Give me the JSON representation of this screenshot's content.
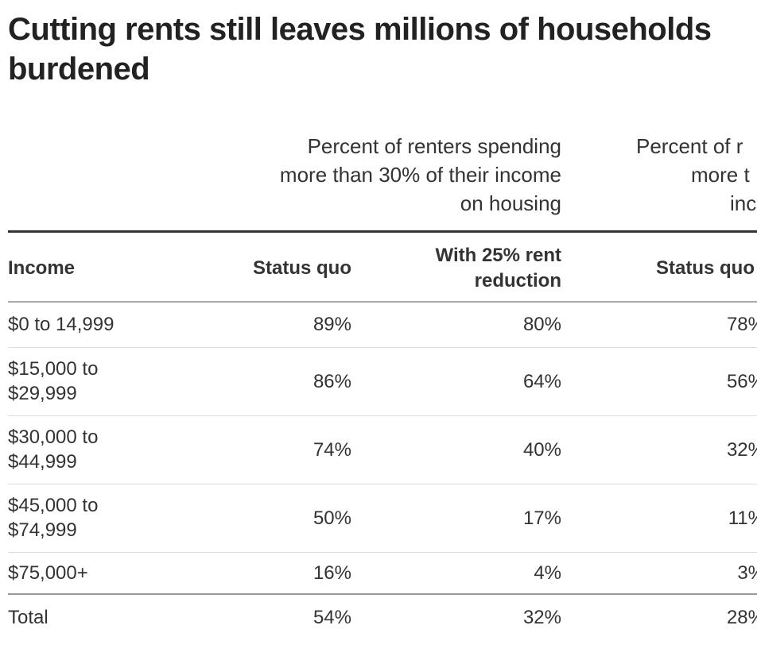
{
  "header": {
    "title": "Cutting rents still leaves millions of households burdened"
  },
  "table": {
    "column_groups": [
      {
        "lines": [
          "Percent of renters spending",
          "more than 30% of their income",
          "on housing"
        ]
      },
      {
        "lines": [
          "Percent of r",
          "more t",
          "inc"
        ]
      }
    ],
    "columns": [
      "Income",
      "Status quo",
      "With 25% rent reduction",
      "Status quo"
    ],
    "rows": [
      [
        "$0 to 14,999",
        "89%",
        "80%",
        "78%"
      ],
      [
        "$15,000 to $29,999",
        "86%",
        "64%",
        "56%"
      ],
      [
        "$30,000 to $44,999",
        "74%",
        "40%",
        "32%"
      ],
      [
        "$45,000 to $74,999",
        "50%",
        "17%",
        "11%"
      ],
      [
        "$75,000+",
        "16%",
        "4%",
        "3%"
      ]
    ],
    "total": [
      "Total",
      "54%",
      "32%",
      "28%"
    ]
  }
}
